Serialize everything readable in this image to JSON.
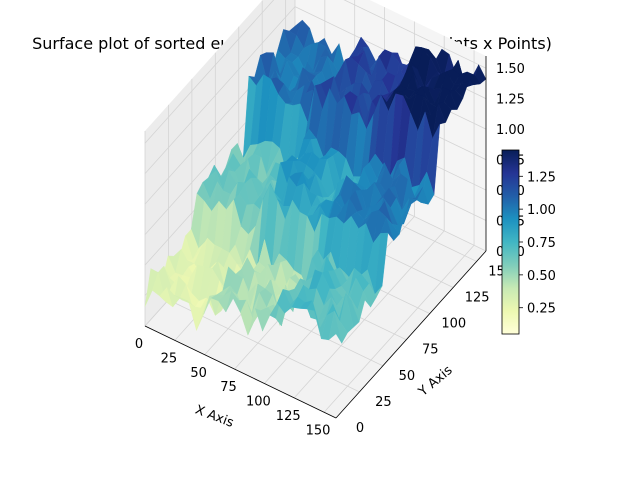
{
  "chart_data": {
    "type": "surface3d",
    "title": "Surface plot of sorted euclidean Distance Matrix (Points x Points)",
    "xlabel": "X Axis",
    "ylabel": "Y Axis",
    "zlabel": "",
    "xlim": [
      0,
      160
    ],
    "ylim": [
      0,
      160
    ],
    "zlim": [
      0,
      1.6
    ],
    "xticks": [
      "0",
      "25",
      "50",
      "75",
      "100",
      "125",
      "150"
    ],
    "yticks": [
      "0",
      "25",
      "50",
      "75",
      "100",
      "125",
      "150"
    ],
    "zticks": [
      "0.00",
      "0.25",
      "0.50",
      "0.75",
      "1.00",
      "1.25",
      "1.50"
    ],
    "colormap": "YlGnBu",
    "colorbar": {
      "range": [
        0.05,
        1.45
      ],
      "ticks": [
        "0.25",
        "0.50",
        "0.75",
        "1.00",
        "1.25"
      ]
    },
    "blocks": [
      {
        "x": [
          0,
          55
        ],
        "y": [
          0,
          55
        ],
        "z": 0.3
      },
      {
        "x": [
          0,
          55
        ],
        "y": [
          55,
          110
        ],
        "z": 0.6
      },
      {
        "x": [
          0,
          55
        ],
        "y": [
          110,
          160
        ],
        "z": 1.05
      },
      {
        "x": [
          55,
          110
        ],
        "y": [
          0,
          55
        ],
        "z": 0.45
      },
      {
        "x": [
          55,
          110
        ],
        "y": [
          55,
          110
        ],
        "z": 0.85
      },
      {
        "x": [
          55,
          110
        ],
        "y": [
          110,
          160
        ],
        "z": 1.2
      },
      {
        "x": [
          110,
          160
        ],
        "y": [
          0,
          55
        ],
        "z": 0.7
      },
      {
        "x": [
          110,
          160
        ],
        "y": [
          55,
          110
        ],
        "z": 1.0
      },
      {
        "x": [
          110,
          160
        ],
        "y": [
          110,
          160
        ],
        "z": 1.45
      }
    ],
    "grid": true
  }
}
